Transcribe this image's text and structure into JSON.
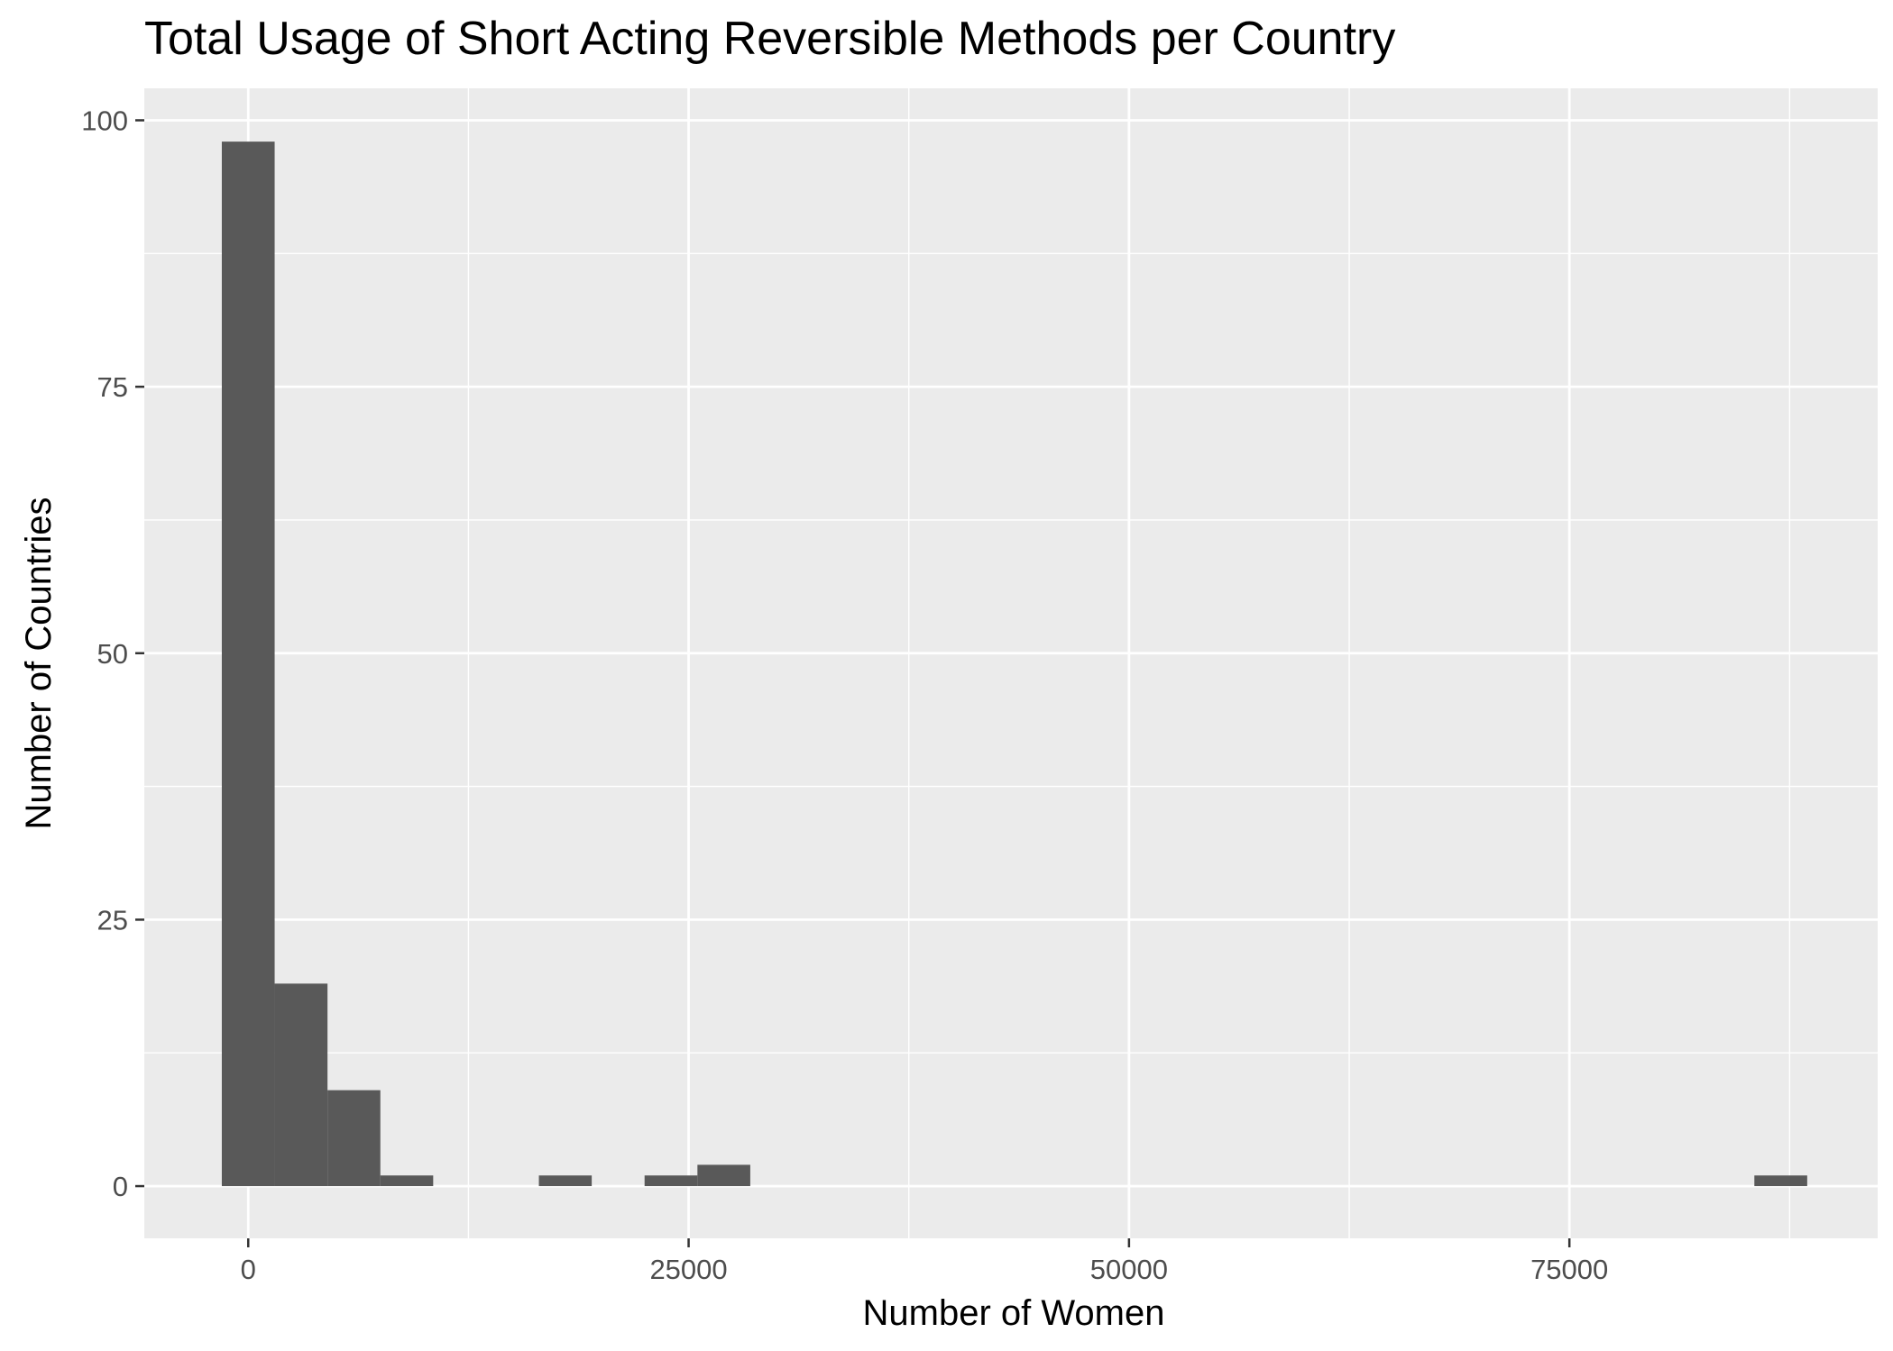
{
  "chart_data": {
    "type": "bar",
    "title": "Total Usage of Short Acting Reversible Methods per Country",
    "xlabel": "Number of Women",
    "ylabel": "Number of Countries",
    "xlim": [
      -5900,
      92500
    ],
    "ylim": [
      -4.9,
      103
    ],
    "x_ticks": [
      0,
      25000,
      50000,
      75000
    ],
    "x_tick_labels": [
      "0",
      "25000",
      "50000",
      "75000"
    ],
    "y_ticks": [
      0,
      25,
      50,
      75,
      100
    ],
    "y_tick_labels": [
      "0",
      "25",
      "50",
      "75",
      "100"
    ],
    "bin_width": 3000,
    "bins": [
      {
        "start": -1500,
        "end": 1500,
        "count": 98
      },
      {
        "start": 1500,
        "end": 4500,
        "count": 19
      },
      {
        "start": 4500,
        "end": 7500,
        "count": 9
      },
      {
        "start": 7500,
        "end": 10500,
        "count": 1
      },
      {
        "start": 16500,
        "end": 19500,
        "count": 1
      },
      {
        "start": 22500,
        "end": 25500,
        "count": 1
      },
      {
        "start": 25500,
        "end": 28500,
        "count": 2
      },
      {
        "start": 85500,
        "end": 88500,
        "count": 1
      }
    ],
    "grid": true,
    "legend": "none",
    "colors": {
      "panel_background": "#ebebeb",
      "grid_major": "#ffffff",
      "grid_minor": "#ffffff",
      "bar_fill": "#595959",
      "axis_tick": "#333333",
      "tick_label": "#4d4d4d",
      "text": "#000000"
    }
  }
}
